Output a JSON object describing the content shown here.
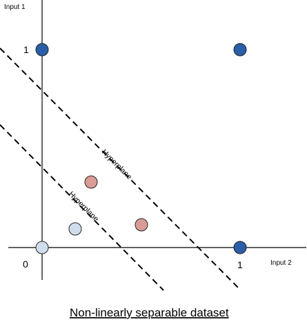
{
  "axes": {
    "y_title": "Input 1",
    "x_title": "Input 2",
    "origin_label": "0",
    "x_tick_label": "1",
    "y_tick_label": "1"
  },
  "hyperplanes": [
    {
      "label": "Hyperplane"
    },
    {
      "label": "Hyperplane"
    }
  ],
  "title": "Non-linearly separable dataset",
  "colors": {
    "class_dark": "#2a5ea8",
    "class_light": "#cfdcec",
    "class_red": "#d99b95",
    "line": "#000000"
  },
  "points": [
    {
      "class": "dark"
    },
    {
      "class": "dark"
    },
    {
      "class": "dark"
    },
    {
      "class": "light"
    },
    {
      "class": "light"
    },
    {
      "class": "red"
    },
    {
      "class": "red"
    }
  ]
}
